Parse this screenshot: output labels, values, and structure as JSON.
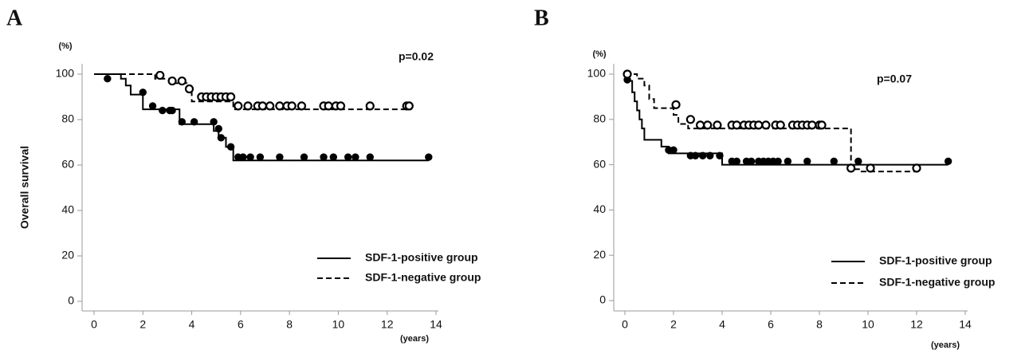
{
  "chart_data": [
    {
      "type": "step",
      "panel_label": "A",
      "y_unit": "(%)",
      "x_unit": "(years)",
      "y_label": "Overall survival",
      "annotation": "p=0.02",
      "xlim": [
        0,
        14
      ],
      "ylim": [
        0,
        100
      ],
      "xticks": [
        0,
        2,
        4,
        6,
        8,
        10,
        12,
        14
      ],
      "yticks": [
        0,
        20,
        40,
        60,
        80,
        100
      ],
      "series": [
        {
          "name": "SDF-1-positive group",
          "color": "#000000",
          "line_style": "solid",
          "marker": "filled",
          "x": [
            0,
            1.1,
            1.3,
            1.5,
            2.0,
            3.5,
            4.9,
            5.1,
            5.4,
            5.7,
            13.7
          ],
          "values": [
            100,
            98,
            95,
            91,
            84.5,
            78,
            75,
            72,
            68,
            62,
            62
          ],
          "censored_x": [
            0.55,
            2.0,
            2.4,
            2.8,
            3.1,
            3.2,
            3.6,
            4.1,
            4.9,
            5.1,
            5.2,
            5.6,
            5.9,
            6.1,
            6.4,
            6.8,
            7.6,
            8.6,
            9.4,
            9.8,
            10.4,
            10.7,
            11.3,
            13.7
          ],
          "censored_values": [
            98,
            92,
            86,
            84,
            84,
            84,
            79,
            79,
            79,
            76,
            72,
            68,
            63.5,
            63.5,
            63.5,
            63.5,
            63.5,
            63.5,
            63.5,
            63.5,
            63.5,
            63.5,
            63.5,
            63.5
          ]
        },
        {
          "name": "SDF-1-negative group",
          "color": "#000000",
          "line_style": "dashed",
          "marker": "open",
          "x": [
            0,
            2.5,
            3.3,
            3.8,
            4.0,
            5.7,
            13.0
          ],
          "values": [
            100,
            98,
            96,
            92,
            88,
            84.5,
            84.5
          ],
          "censored_x": [
            2.7,
            3.2,
            3.6,
            3.9,
            4.4,
            4.6,
            4.8,
            5.0,
            5.2,
            5.4,
            5.6,
            5.9,
            6.3,
            6.7,
            6.9,
            7.2,
            7.6,
            7.9,
            8.1,
            8.5,
            9.4,
            9.6,
            9.9,
            10.1,
            11.3,
            12.8,
            12.9
          ],
          "censored_values": [
            99.5,
            97,
            97,
            93.5,
            90,
            90,
            90,
            90,
            90,
            90,
            90,
            86,
            86,
            86,
            86,
            86,
            86,
            86,
            86,
            86,
            86,
            86,
            86,
            86,
            86,
            86,
            86
          ]
        }
      ]
    },
    {
      "type": "step",
      "panel_label": "B",
      "y_unit": "(%)",
      "x_unit": "(years)",
      "annotation": "p=0.07",
      "xlim": [
        0,
        14
      ],
      "ylim": [
        0,
        100
      ],
      "xticks": [
        0,
        2,
        4,
        6,
        8,
        10,
        12,
        14
      ],
      "yticks": [
        0,
        20,
        40,
        60,
        80,
        100
      ],
      "series": [
        {
          "name": "SDF-1-positive group",
          "color": "#000000",
          "line_style": "solid",
          "marker": "filled",
          "x": [
            0,
            0.1,
            0.3,
            0.4,
            0.5,
            0.6,
            0.7,
            0.8,
            1.5,
            1.8,
            4.0,
            13.3
          ],
          "values": [
            100,
            97,
            92,
            88,
            84,
            80,
            76,
            71,
            68,
            65,
            60,
            60
          ],
          "censored_x": [
            0.1,
            1.8,
            2.0,
            2.7,
            2.9,
            3.2,
            3.5,
            3.9,
            4.4,
            4.6,
            5.0,
            5.2,
            5.5,
            5.7,
            5.9,
            6.1,
            6.3,
            6.7,
            7.5,
            8.6,
            9.6,
            13.3
          ],
          "censored_values": [
            97.5,
            66.5,
            66.5,
            64,
            64,
            64,
            64,
            64,
            61.5,
            61.5,
            61.5,
            61.5,
            61.5,
            61.5,
            61.5,
            61.5,
            61.5,
            61.5,
            61.5,
            61.5,
            61.5,
            61.5
          ]
        },
        {
          "name": "SDF-1-negative group",
          "color": "#000000",
          "line_style": "dashed",
          "marker": "open",
          "x": [
            0,
            0.5,
            0.8,
            1.0,
            1.2,
            2.0,
            2.2,
            2.6,
            9.3,
            9.7,
            12.0
          ],
          "values": [
            100,
            98,
            95,
            89,
            85,
            82,
            78,
            76,
            58,
            57,
            57
          ],
          "censored_x": [
            0.1,
            2.1,
            2.7,
            3.1,
            3.4,
            3.8,
            4.4,
            4.6,
            4.9,
            5.1,
            5.3,
            5.5,
            5.8,
            6.2,
            6.4,
            6.9,
            7.1,
            7.3,
            7.5,
            7.7,
            8.0,
            8.1,
            9.3,
            10.1,
            12.0
          ],
          "censored_values": [
            100,
            86.5,
            80,
            77.5,
            77.5,
            77.5,
            77.5,
            77.5,
            77.5,
            77.5,
            77.5,
            77.5,
            77.5,
            77.5,
            77.5,
            77.5,
            77.5,
            77.5,
            77.5,
            77.5,
            77.5,
            77.5,
            58.5,
            58.5,
            58.5
          ]
        }
      ]
    }
  ]
}
